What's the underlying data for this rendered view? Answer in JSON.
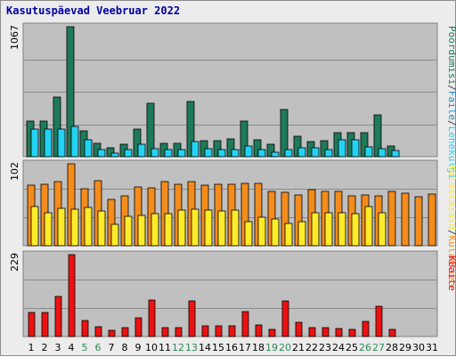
{
  "chart_data": {
    "type": "bar",
    "title": "Kasutuspäevad Veebruar 2022",
    "categories": [
      "1",
      "2",
      "3",
      "4",
      "5",
      "6",
      "7",
      "8",
      "9",
      "10",
      "11",
      "12",
      "13",
      "14",
      "15",
      "16",
      "17",
      "18",
      "19",
      "20",
      "21",
      "22",
      "23",
      "24",
      "25",
      "26",
      "27",
      "28",
      "29",
      "30",
      "31"
    ],
    "weekend_days": [
      "5",
      "6",
      "12",
      "13",
      "19",
      "20",
      "26",
      "27"
    ],
    "colors": {
      "background": "#c0c0c0",
      "frame": "#ececec",
      "title": "#0000a0",
      "weekday_label": "#000000",
      "weekend_label": "#2e8b57",
      "pageviews": "#1e7a5a",
      "files": "#22d3f3",
      "visits": "#f48c1c",
      "unique_visitors": "#ffeb2a",
      "kbytes": "#ee1111"
    },
    "panels": [
      {
        "ymax_label": "1067",
        "ylim": [
          0,
          1067
        ],
        "legend": [
          {
            "text": "Pöördumisi",
            "color": "#1e7a5a"
          },
          {
            "text": "/",
            "color": "#404040"
          },
          {
            "text": "Faile",
            "color": "#1a8fd0"
          },
          {
            "text": "/",
            "color": "#404040"
          },
          {
            "text": "Lehekülgi",
            "color": "#22d3f3"
          }
        ],
        "series": [
          {
            "name": "Pöördumisi",
            "color": "#1e7a5a",
            "values": [
              290,
              295,
              490,
              1067,
              215,
              110,
              75,
              105,
              230,
              435,
              110,
              110,
              450,
              135,
              135,
              145,
              290,
              140,
              100,
              385,
              165,
              125,
              130,
              195,
              195,
              200,
              345,
              85,
              null,
              null,
              null
            ]
          },
          {
            "name": "Lehekülgi",
            "color": "#22d3f3",
            "values": [
              230,
              225,
              230,
              245,
              140,
              55,
              30,
              55,
              100,
              65,
              60,
              55,
              125,
              65,
              55,
              55,
              85,
              55,
              35,
              55,
              75,
              70,
              55,
              140,
              140,
              80,
              65,
              50,
              null,
              null,
              null
            ]
          }
        ]
      },
      {
        "ymax_label": "102",
        "ylim": [
          0,
          102
        ],
        "legend": [
          {
            "text": "Külastajaid",
            "color": "#ffeb2a"
          },
          {
            "text": "/",
            "color": "#404040"
          },
          {
            "text": "Külastusi",
            "color": "#f48c1c"
          }
        ],
        "series": [
          {
            "name": "Külastusi",
            "color": "#f48c1c",
            "values": [
              75,
              77,
              80,
              102,
              71,
              81,
              58,
              62,
              73,
              72,
              80,
              76,
              80,
              75,
              76,
              76,
              78,
              78,
              68,
              67,
              63,
              70,
              68,
              68,
              62,
              63,
              62,
              68,
              65,
              61,
              64
            ]
          },
          {
            "name": "Külastajaid",
            "color": "#ffeb2a",
            "values": [
              49,
              41,
              47,
              45,
              48,
              43,
              27,
              37,
              38,
              40,
              40,
              44,
              46,
              44,
              43,
              44,
              30,
              36,
              33,
              28,
              30,
              41,
              41,
              41,
              40,
              49,
              41,
              null,
              null,
              null,
              null
            ]
          }
        ]
      },
      {
        "ymax_label": "229",
        "ylim": [
          0,
          229
        ],
        "legend": [
          {
            "text": "KBaite",
            "color": "#ee1111"
          }
        ],
        "series": [
          {
            "name": "KBaite",
            "color": "#ee1111",
            "values": [
              66,
              66,
              113,
              229,
              44,
              27,
              18,
              24,
              52,
              101,
              24,
              24,
              100,
              29,
              30,
              31,
              70,
              32,
              21,
              100,
              40,
              26,
              24,
              22,
              20,
              43,
              84,
              20,
              null,
              null,
              null
            ]
          }
        ]
      }
    ]
  }
}
